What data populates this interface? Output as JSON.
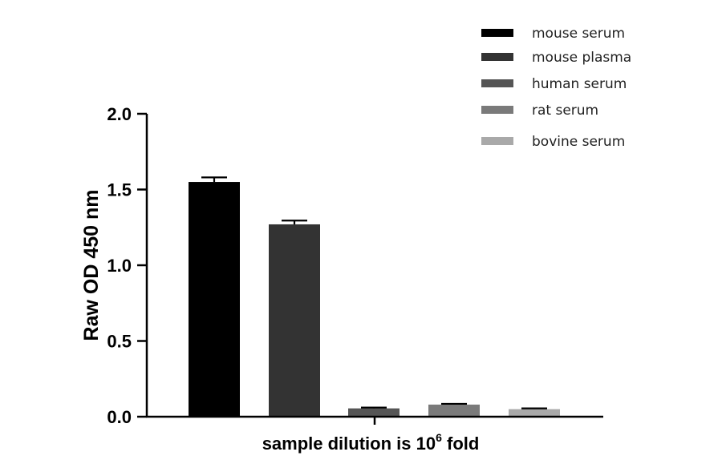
{
  "chart_data": {
    "type": "bar",
    "categories": [
      "mouse serum",
      "mouse plasma",
      "human serum",
      "rat serum",
      "bovine serum"
    ],
    "values": [
      1.55,
      1.27,
      0.055,
      0.08,
      0.05
    ],
    "errors": [
      0.03,
      0.025,
      0.005,
      0.005,
      0.005
    ],
    "colors": [
      "#000000",
      "#333333",
      "#555555",
      "#7a7a7a",
      "#a9a9a9"
    ],
    "ylabel": "Raw OD 450 nm",
    "xlabel_main": "sample dilution is 10",
    "xlabel_sup": "6",
    "xlabel_tail": " fold",
    "ylim": [
      0,
      2.0
    ],
    "yticks": [
      "0.0",
      "0.5",
      "1.0",
      "1.5",
      "2.0"
    ],
    "legend_position": "top-right",
    "grid": false
  }
}
